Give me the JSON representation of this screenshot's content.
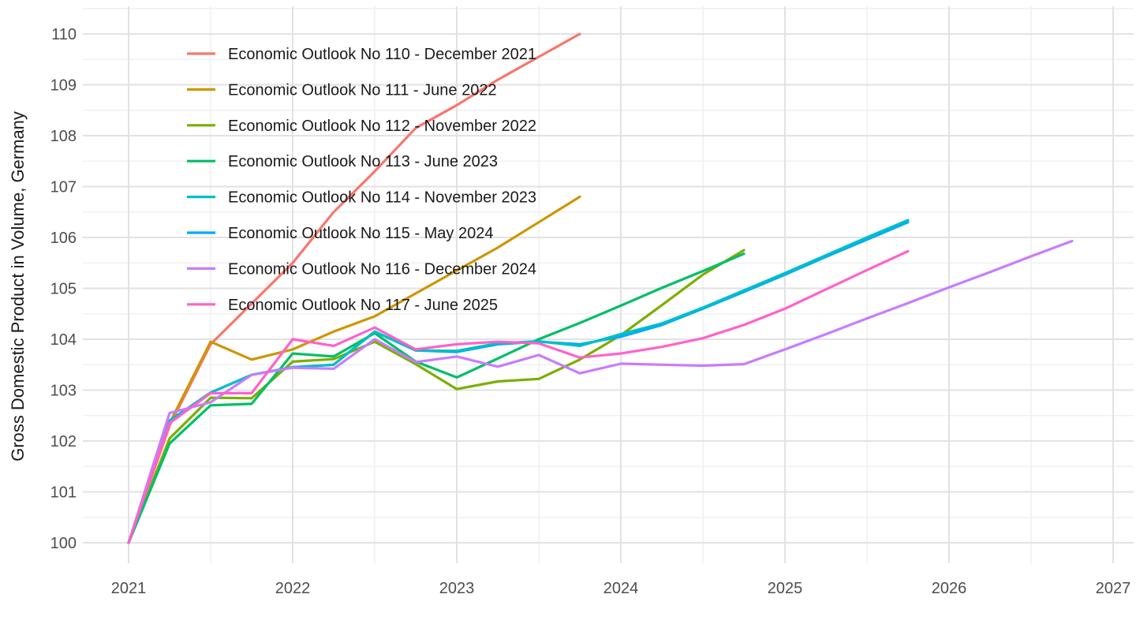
{
  "figure": {
    "background": "#ffffff"
  },
  "y_axis": {
    "title": "Gross Domestic Product in Volume, Germany",
    "ticks": [
      100,
      101,
      102,
      103,
      104,
      105,
      106,
      107,
      108,
      109,
      110
    ],
    "tick_color": "#4d4d4d"
  },
  "x_axis": {
    "ticks": [
      2021,
      2022,
      2023,
      2024,
      2025,
      2026,
      2027
    ],
    "tick_color": "#4d4d4d"
  },
  "grid": {
    "major_color": "#e2e2e2",
    "minor_color": "#f0f0f0"
  },
  "legend": {
    "position": "top-left-inside",
    "text_color": "#1a1a1a"
  },
  "chart_data": {
    "type": "line",
    "title": "",
    "xlabel": "",
    "ylabel": "Gross Domestic Product in Volume, Germany",
    "x_unit": "year (quarterly points)",
    "x_start": 2021,
    "x_step": 0.25,
    "xlim": [
      2020.72,
      2027.13
    ],
    "ylim": [
      99.55,
      110.55
    ],
    "grid": "on",
    "legend_position": "inside top-left",
    "series": [
      {
        "name": "Economic Outlook No 110 - December 2021",
        "color": "#F8766D",
        "values": [
          100,
          102.3,
          103.9,
          104.7,
          105.5,
          106.5,
          107.3,
          108.15,
          108.6,
          109.1,
          109.55,
          110.0
        ]
      },
      {
        "name": "Economic Outlook No 111 - June 2022",
        "color": "#CD9600",
        "values": [
          100,
          102.35,
          103.95,
          103.6,
          103.8,
          104.15,
          104.45,
          104.9,
          105.35,
          105.8,
          106.3,
          106.8
        ]
      },
      {
        "name": "Economic Outlook No 112 - November 2022",
        "color": "#7CAE00",
        "values": [
          100,
          102.05,
          102.85,
          102.84,
          103.56,
          103.61,
          103.95,
          103.51,
          103.02,
          103.17,
          103.22,
          103.6,
          104.08,
          104.67,
          105.27,
          105.75
        ]
      },
      {
        "name": "Economic Outlook No 113 - June 2023",
        "color": "#00BE67",
        "values": [
          100,
          101.95,
          102.7,
          102.73,
          103.72,
          103.66,
          104.12,
          103.56,
          103.25,
          103.62,
          104.0,
          104.32,
          104.66,
          105.01,
          105.34,
          105.68
        ]
      },
      {
        "name": "Economic Outlook No 114 - November 2023",
        "color": "#00BFC4",
        "values": [
          100,
          102.4,
          102.95,
          103.3,
          103.45,
          103.5,
          104.15,
          103.78,
          103.77,
          103.92,
          103.96,
          103.87,
          104.1,
          104.31,
          104.62,
          104.96,
          105.3,
          105.65,
          106.0,
          106.34
        ]
      },
      {
        "name": "Economic Outlook No 115 - May 2024",
        "color": "#00A9FF",
        "values": [
          100,
          102.4,
          102.95,
          103.3,
          103.45,
          103.5,
          104.15,
          103.78,
          103.75,
          103.9,
          103.95,
          103.9,
          104.05,
          104.28,
          104.6,
          104.93,
          105.27,
          105.62,
          105.96,
          106.3
        ]
      },
      {
        "name": "Economic Outlook No 116 - December 2024",
        "color": "#C77CFF",
        "values": [
          100,
          102.55,
          102.76,
          103.3,
          103.44,
          103.42,
          104.0,
          103.55,
          103.66,
          103.46,
          103.69,
          103.33,
          103.52,
          103.5,
          103.48,
          103.51,
          103.8,
          104.1,
          104.41,
          104.71,
          105.02,
          105.32,
          105.63,
          105.93
        ]
      },
      {
        "name": "Economic Outlook No 117 - June 2025",
        "color": "#FF61CC",
        "values": [
          100,
          102.35,
          102.94,
          102.94,
          104.0,
          103.87,
          104.23,
          103.8,
          103.9,
          103.95,
          103.92,
          103.64,
          103.72,
          103.85,
          104.02,
          104.28,
          104.6,
          104.98,
          105.36,
          105.73
        ]
      }
    ],
    "draw_order": [
      0,
      1,
      2,
      3,
      5,
      4,
      6,
      7
    ]
  }
}
